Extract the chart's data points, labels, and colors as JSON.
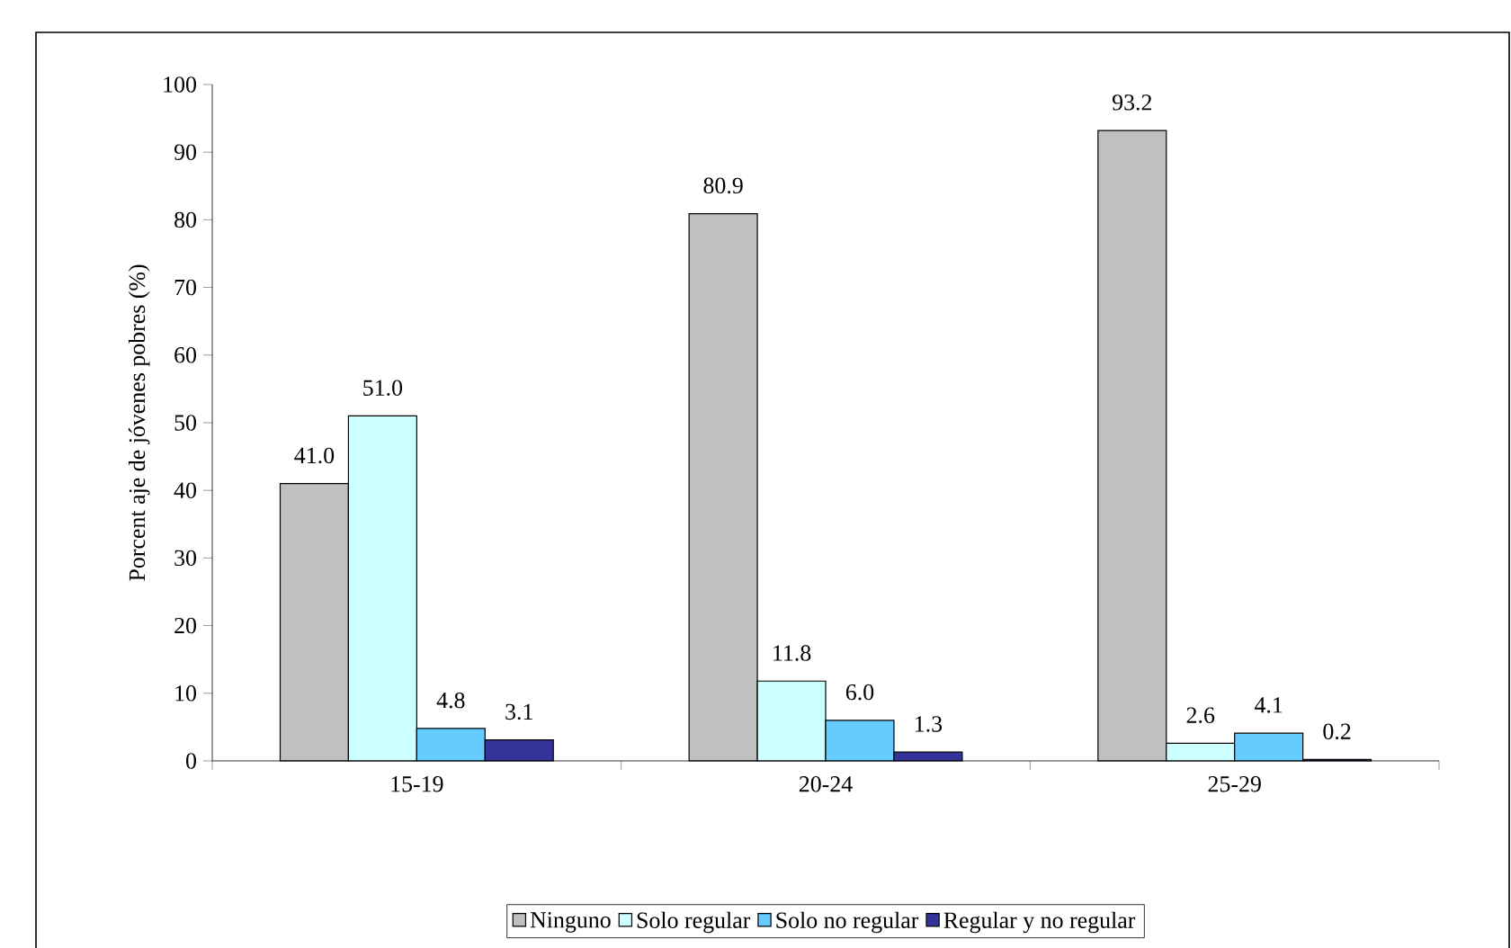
{
  "chart_data": {
    "type": "bar",
    "ylabel": "Porcent aje de jóvenes pobres (%)",
    "categories": [
      "15-19",
      "20-24",
      "25-29"
    ],
    "series": [
      {
        "name": "Ninguno",
        "color": "#c0c0c0",
        "values": [
          41.0,
          80.9,
          93.2
        ],
        "value_labels": [
          "41.0",
          "80.9",
          "93.2"
        ]
      },
      {
        "name": "Solo regular",
        "color": "#ccffff",
        "values": [
          51.0,
          11.8,
          2.6
        ],
        "value_labels": [
          "51.0",
          "11.8",
          "2.6"
        ]
      },
      {
        "name": "Solo no regular",
        "color": "#66ccff",
        "values": [
          4.8,
          6.0,
          4.1
        ],
        "value_labels": [
          "4.8",
          "6.0",
          "4.1"
        ]
      },
      {
        "name": "Regular y no regular",
        "color": "#333399",
        "values": [
          3.1,
          1.3,
          0.2
        ],
        "value_labels": [
          "3.1",
          "1.3",
          "0.2"
        ]
      }
    ],
    "ylim": [
      0,
      100
    ],
    "yticks": [
      0,
      10,
      20,
      30,
      40,
      50,
      60,
      70,
      80,
      90,
      100
    ],
    "grid": false,
    "legend": "bottom"
  }
}
